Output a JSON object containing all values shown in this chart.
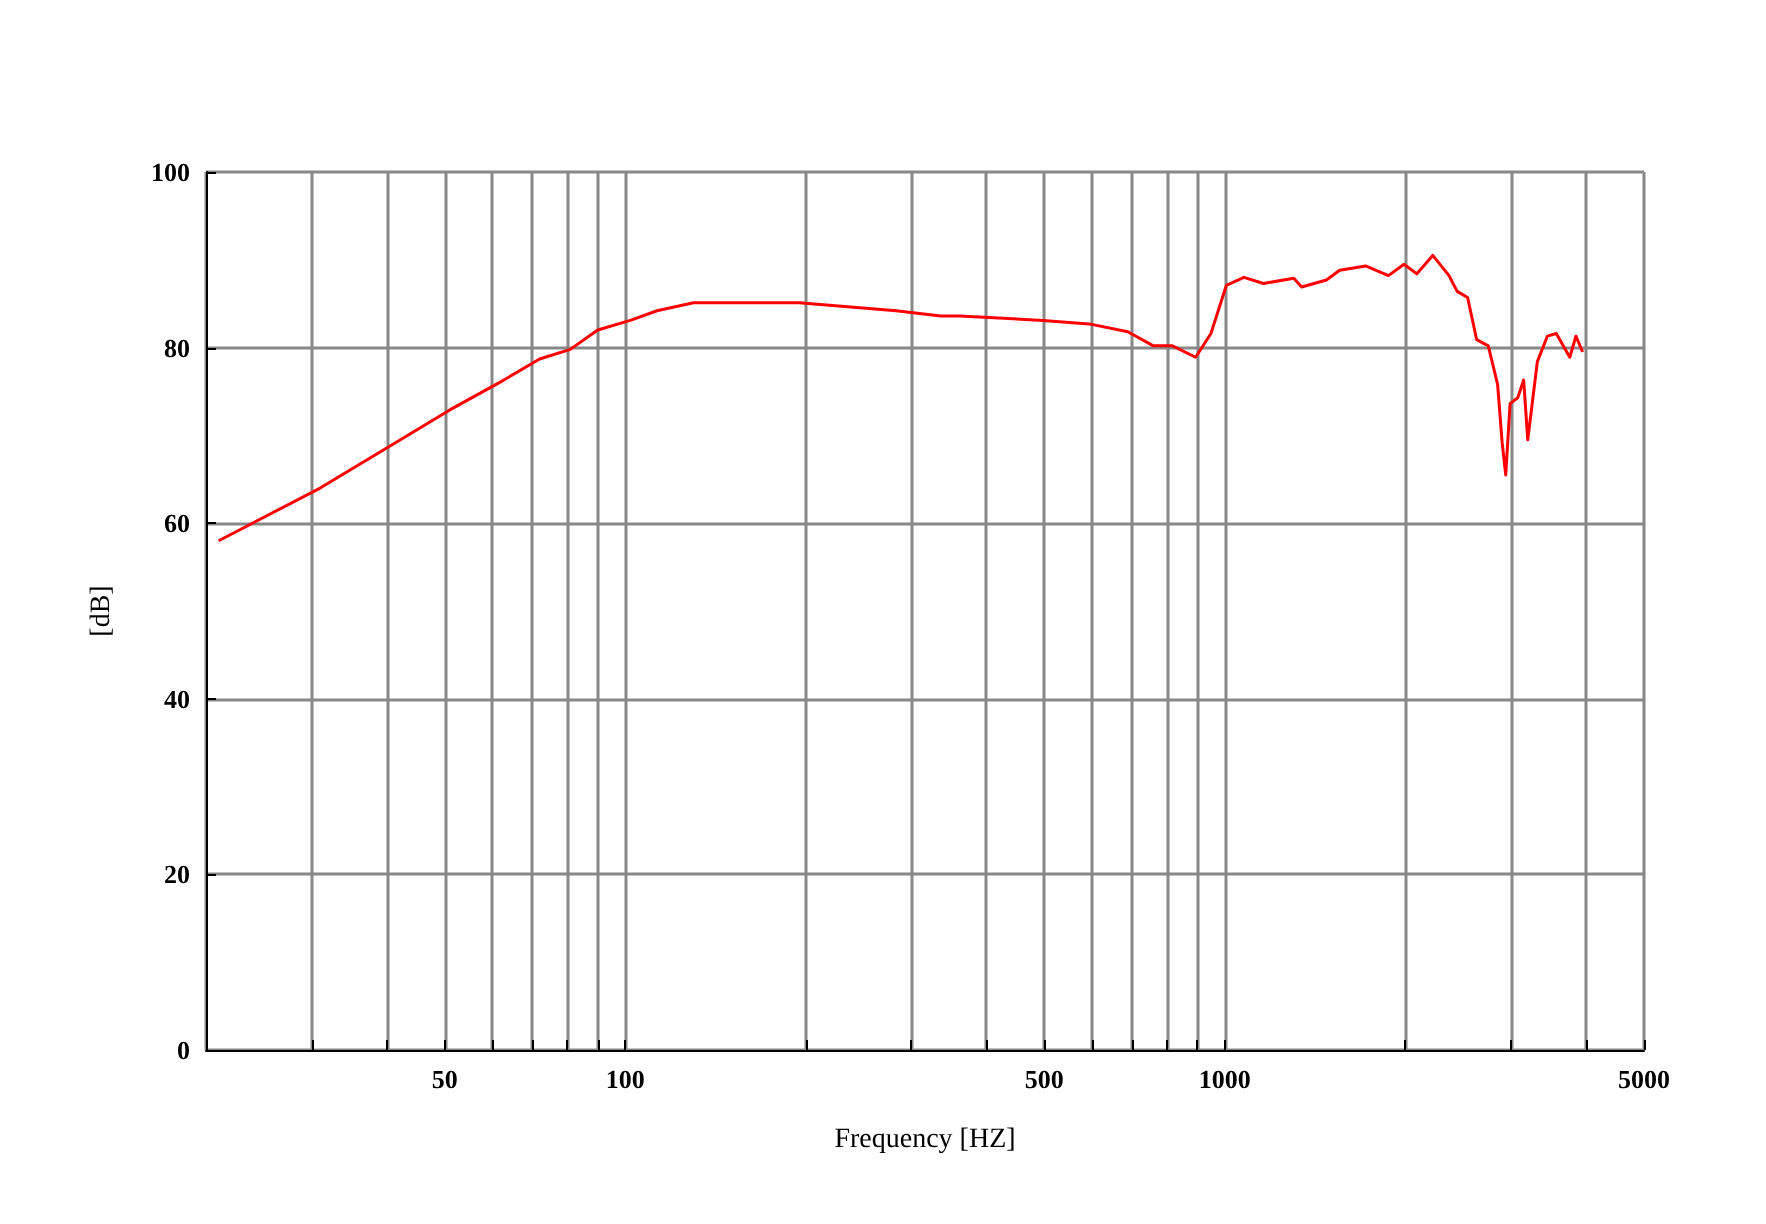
{
  "chart_data": {
    "type": "line",
    "xlabel": "Frequency [HZ]",
    "ylabel": "[dB]",
    "log": "x",
    "grid": true,
    "marker": "none",
    "line_style": "solid",
    "xlim": [
      20,
      5000
    ],
    "ylim": [
      0,
      100
    ],
    "xticks": [
      {
        "value": 20,
        "label": null
      },
      {
        "value": 30,
        "label": null
      },
      {
        "value": 40,
        "label": null
      },
      50,
      {
        "value": 60,
        "label": null
      },
      {
        "value": 70,
        "label": null
      },
      {
        "value": 80,
        "label": null
      },
      {
        "value": 90,
        "label": null
      },
      100,
      {
        "value": 200,
        "label": null
      },
      {
        "value": 300,
        "label": null
      },
      {
        "value": 400,
        "label": null
      },
      500,
      {
        "value": 600,
        "label": null
      },
      {
        "value": 700,
        "label": null
      },
      {
        "value": 800,
        "label": null
      },
      {
        "value": 900,
        "label": null
      },
      1000,
      {
        "value": 2000,
        "label": null
      },
      {
        "value": 3000,
        "label": null
      },
      {
        "value": 4000,
        "label": null
      },
      5000
    ],
    "yticks": [
      0,
      20,
      40,
      60,
      80,
      100
    ],
    "series": [
      {
        "color": "#ff0000",
        "x": [
          21,
          31,
          41,
          51,
          62,
          72,
          81,
          90,
          102,
          113,
          130,
          195,
          283,
          336,
          361,
          497,
          594,
          689,
          760,
          818,
          894,
          948,
          1006,
          1076,
          1160,
          1303,
          1343,
          1477,
          1554,
          1717,
          1874,
          1990,
          2090,
          2222,
          2365,
          2440,
          2540,
          2630,
          2750,
          2850,
          2900,
          2940,
          2990,
          3080,
          3150,
          3200,
          3320,
          3450,
          3570,
          3760,
          3850,
          3950
        ],
        "values": [
          58,
          64,
          69,
          72.9,
          76.1,
          78.7,
          79.8,
          82,
          83.1,
          84.2,
          85.1,
          85.1,
          84.2,
          83.6,
          83.6,
          83.1,
          82.7,
          81.8,
          80.2,
          80.2,
          78.9,
          81.6,
          87.1,
          88,
          87.3,
          87.9,
          86.9,
          87.7,
          88.8,
          89.3,
          88.2,
          89.5,
          88.4,
          90.5,
          88.2,
          86.4,
          85.7,
          80.9,
          80.2,
          75.8,
          69.2,
          65.5,
          73.6,
          74.3,
          76.3,
          69.5,
          78.4,
          81.3,
          81.6,
          78.9,
          81.3,
          79.5
        ]
      }
    ]
  }
}
